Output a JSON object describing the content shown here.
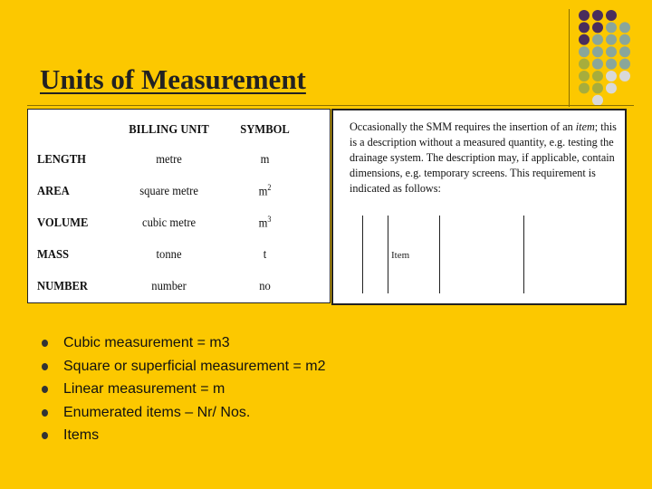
{
  "title": "Units of Measurement",
  "table": {
    "headers": [
      "BILLING UNIT",
      "SYMBOL"
    ],
    "rows": [
      {
        "item": "LENGTH",
        "unit": "metre",
        "symbol": "m"
      },
      {
        "item": "AREA",
        "unit": "square metre",
        "symbol": "m",
        "sup": "2"
      },
      {
        "item": "VOLUME",
        "unit": "cubic metre",
        "symbol": "m",
        "sup": "3"
      },
      {
        "item": "MASS",
        "unit": "tonne",
        "symbol": "t"
      },
      {
        "item": "NUMBER",
        "unit": "number",
        "symbol": "no"
      }
    ]
  },
  "note": {
    "before": "Occasionally the SMM requires the insertion of an ",
    "italic": "item",
    "after": "; this is a description without a measured quantity, e.g. testing the drainage system. The description may, if applicable, contain dimensions, e.g. temporary screens. This requirement is indicated as follows:",
    "label": "Item"
  },
  "bullets": [
    "Cubic measurement = m3",
    "Square or superficial measurement = m2",
    "Linear measurement = m",
    "Enumerated items – Nr/ Nos.",
    "Items"
  ]
}
